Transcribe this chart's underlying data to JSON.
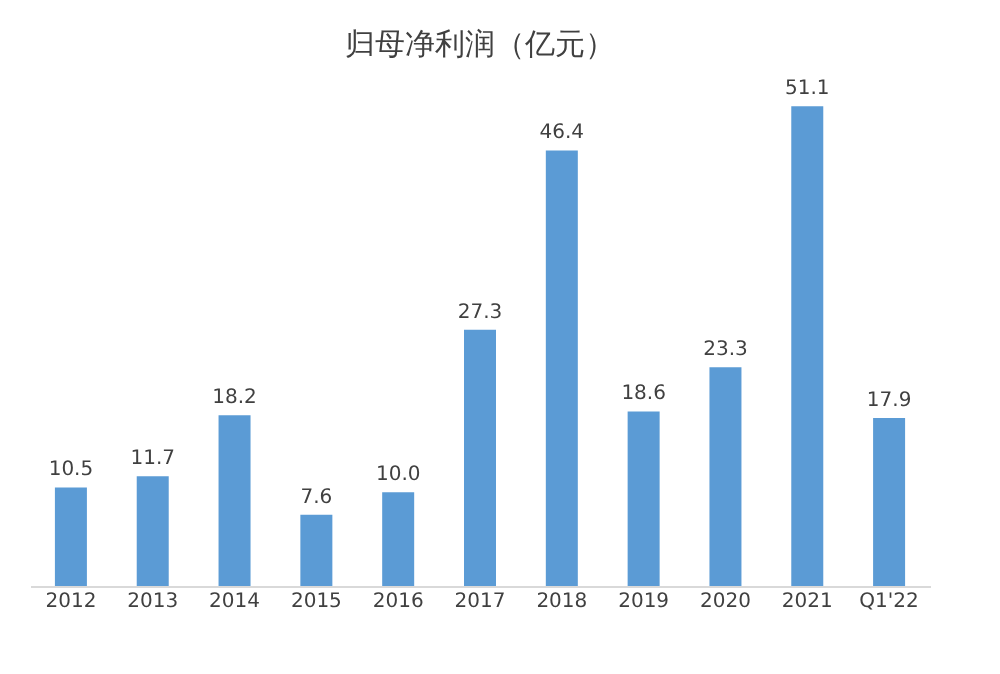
{
  "chart_data": {
    "type": "bar",
    "title": "归母净利润（亿元）",
    "categories": [
      "2012",
      "2013",
      "2014",
      "2015",
      "2016",
      "2017",
      "2018",
      "2019",
      "2020",
      "2021",
      "Q1'22"
    ],
    "values": [
      10.5,
      11.7,
      18.2,
      7.6,
      10.0,
      27.3,
      46.4,
      18.6,
      23.3,
      51.1,
      17.9
    ],
    "value_labels": [
      "10.5",
      "11.7",
      "18.2",
      "7.6",
      "10.0",
      "27.3",
      "46.4",
      "18.6",
      "23.3",
      "51.1",
      "17.9"
    ],
    "color": "#5b9bd5",
    "grid": false
  }
}
